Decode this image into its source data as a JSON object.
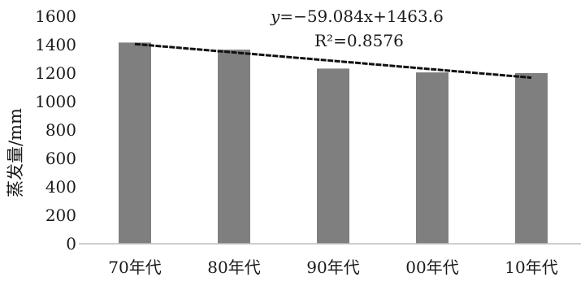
{
  "chart_data": {
    "type": "bar",
    "categories": [
      "70年代",
      "80年代",
      "90年代",
      "00年代",
      "10年代"
    ],
    "values": [
      1415,
      1365,
      1232,
      1205,
      1200
    ],
    "ylabel": "蒸发量/mm",
    "xlabel": "",
    "ylim": [
      0,
      1600
    ],
    "yticks": [
      0,
      200,
      400,
      600,
      800,
      1000,
      1200,
      1400,
      1600
    ],
    "grid": false,
    "bar_color": "#7f7f80",
    "trendline": {
      "type": "linear",
      "slope": -59.084,
      "intercept": 1463.6,
      "equation_prefix": "y=",
      "equation_value": "−59.084x+1463.6",
      "r2_label": "R²=0.8576",
      "color": "#111111"
    }
  }
}
